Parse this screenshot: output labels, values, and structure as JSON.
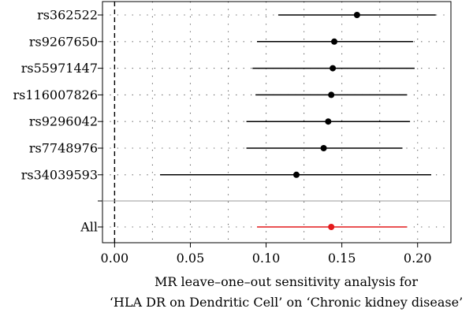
{
  "chart_data": {
    "type": "forest",
    "title": "",
    "xlabel_lines": [
      "MR leave–one–out sensitivity analysis for",
      "‘HLA DR on Dendritic Cell’ on ‘Chronic kidney disease’"
    ],
    "xlim": [
      -0.008,
      0.222
    ],
    "xticks": [
      0.0,
      0.05,
      0.1,
      0.15,
      0.2
    ],
    "xtick_labels": [
      "0.00",
      "0.05",
      "0.10",
      "0.15",
      "0.20"
    ],
    "reference_line": 0,
    "grid": "dotted",
    "rows": [
      {
        "label": "rs362522",
        "estimate": 0.16,
        "lower": 0.108,
        "upper": 0.212
      },
      {
        "label": "rs9267650",
        "estimate": 0.145,
        "lower": 0.094,
        "upper": 0.197
      },
      {
        "label": "rs55971447",
        "estimate": 0.144,
        "lower": 0.091,
        "upper": 0.198
      },
      {
        "label": "rs116007826",
        "estimate": 0.143,
        "lower": 0.093,
        "upper": 0.193
      },
      {
        "label": "rs9296042",
        "estimate": 0.141,
        "lower": 0.087,
        "upper": 0.195
      },
      {
        "label": "rs7748976",
        "estimate": 0.138,
        "lower": 0.087,
        "upper": 0.19
      },
      {
        "label": "rs34039593",
        "estimate": 0.12,
        "lower": 0.03,
        "upper": 0.209
      }
    ],
    "summary": {
      "label": "All",
      "estimate": 0.143,
      "lower": 0.094,
      "upper": 0.193,
      "color": "#e41a1c"
    },
    "point_color": "#000000"
  }
}
